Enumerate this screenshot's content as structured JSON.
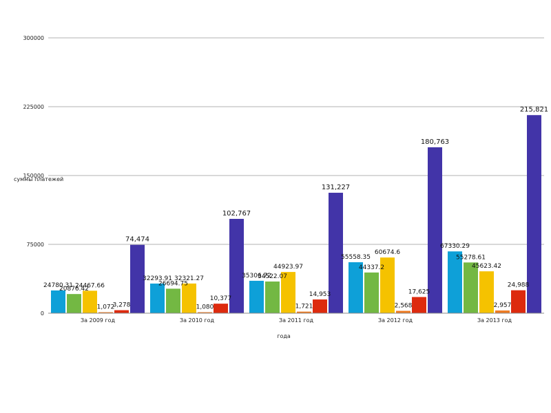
{
  "chart_data": {
    "type": "bar",
    "title": "",
    "xlabel": "года",
    "ylabel": "суммы платежей",
    "ylim": [
      0,
      300000
    ],
    "yticks": [
      "0",
      "75000",
      "150000",
      "225000",
      "300000"
    ],
    "grid": true,
    "legend": "none",
    "categories": [
      "За 2009 год",
      "За 2010 год",
      "За 2011 год",
      "За 2012 год",
      "За 2013 год"
    ],
    "series": [
      {
        "color": "#0ea0d8",
        "values": [
          24780.31,
          32293.91,
          35306.72,
          55558.35,
          67330.29
        ],
        "labels": [
          "24780.31",
          "32293.91",
          "35306.72",
          "55558.35",
          "67330.29"
        ]
      },
      {
        "color": "#73b843",
        "values": [
          20876.42,
          26694.75,
          34522.07,
          44337.2,
          55278.61
        ],
        "labels": [
          "20876.42",
          "26694.75",
          "34522.07",
          "44337.2",
          "55278.61"
        ]
      },
      {
        "color": "#f5c200",
        "values": [
          24467.66,
          32321.27,
          44923.97,
          60674.6,
          45623.42
        ],
        "labels": [
          "24467.66",
          "32321.27",
          "44923.97",
          "60674.6",
          "45623.42"
        ]
      },
      {
        "color": "#ee7b22",
        "values": [
          1072,
          1080,
          1721,
          2568,
          2957
        ],
        "labels": [
          "1,072",
          "1,080",
          "1,721",
          "2,568",
          "2,957"
        ]
      },
      {
        "color": "#dd2a0e",
        "values": [
          3278,
          10377,
          14953,
          17625,
          24988
        ],
        "labels": [
          "3,278",
          "10,377",
          "14,953",
          "17,625",
          "24,988"
        ]
      },
      {
        "color": "#4234a8",
        "values": [
          74474,
          102767,
          131227,
          180763,
          215821
        ],
        "labels": [
          "74,474",
          "102,767",
          "131,227",
          "180,763",
          "215,821"
        ]
      }
    ]
  }
}
